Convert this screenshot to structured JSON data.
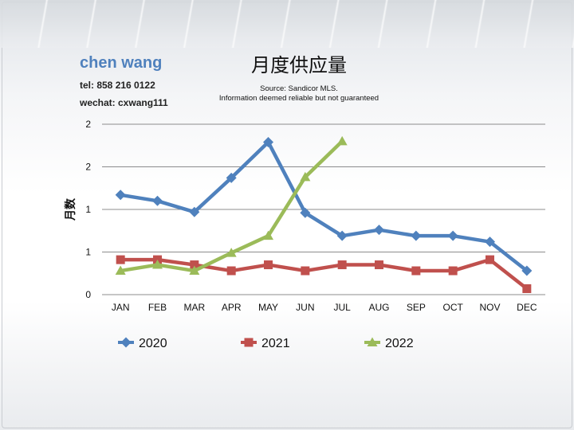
{
  "header": {
    "agent_name": "chen wang",
    "tel": "tel: 858 216 0122",
    "wechat": "wechat: cxwang111"
  },
  "source": {
    "line1": "Source: Sandicor MLS.",
    "line2": "Information deemed reliable but not guaranteed"
  },
  "colors": {
    "agent_name": "#4f81bd",
    "series_2020": "#4f81bd",
    "series_2021": "#c0504d",
    "series_2022": "#9bbb59",
    "gridline": "#8c8c8c"
  },
  "chart_data": {
    "type": "line",
    "title": "月度供应量",
    "xlabel": "",
    "ylabel": "月数",
    "categories": [
      "JAN",
      "FEB",
      "MAR",
      "APR",
      "MAY",
      "JUN",
      "JUL",
      "AUG",
      "SEP",
      "OCT",
      "NOV",
      "DEC"
    ],
    "ylim": [
      0,
      2
    ],
    "y_tick_values": [
      0,
      0.5,
      1,
      1.5,
      2
    ],
    "y_tick_labels": [
      "0",
      "1",
      "1",
      "2",
      "2"
    ],
    "grid": true,
    "legend_position": "bottom",
    "series": [
      {
        "name": "2020",
        "marker": "diamond",
        "color": "#4f81bd",
        "values": [
          1.17,
          1.1,
          0.97,
          1.37,
          1.79,
          0.96,
          0.69,
          0.76,
          0.69,
          0.69,
          0.62,
          0.28
        ]
      },
      {
        "name": "2021",
        "marker": "square",
        "color": "#c0504d",
        "values": [
          0.41,
          0.41,
          0.35,
          0.28,
          0.35,
          0.28,
          0.35,
          0.35,
          0.28,
          0.28,
          0.41,
          0.07
        ]
      },
      {
        "name": "2022",
        "marker": "triangle",
        "color": "#9bbb59",
        "values": [
          0.28,
          0.35,
          0.28,
          0.49,
          0.69,
          1.38,
          1.8,
          null,
          null,
          null,
          null,
          null
        ]
      }
    ]
  }
}
